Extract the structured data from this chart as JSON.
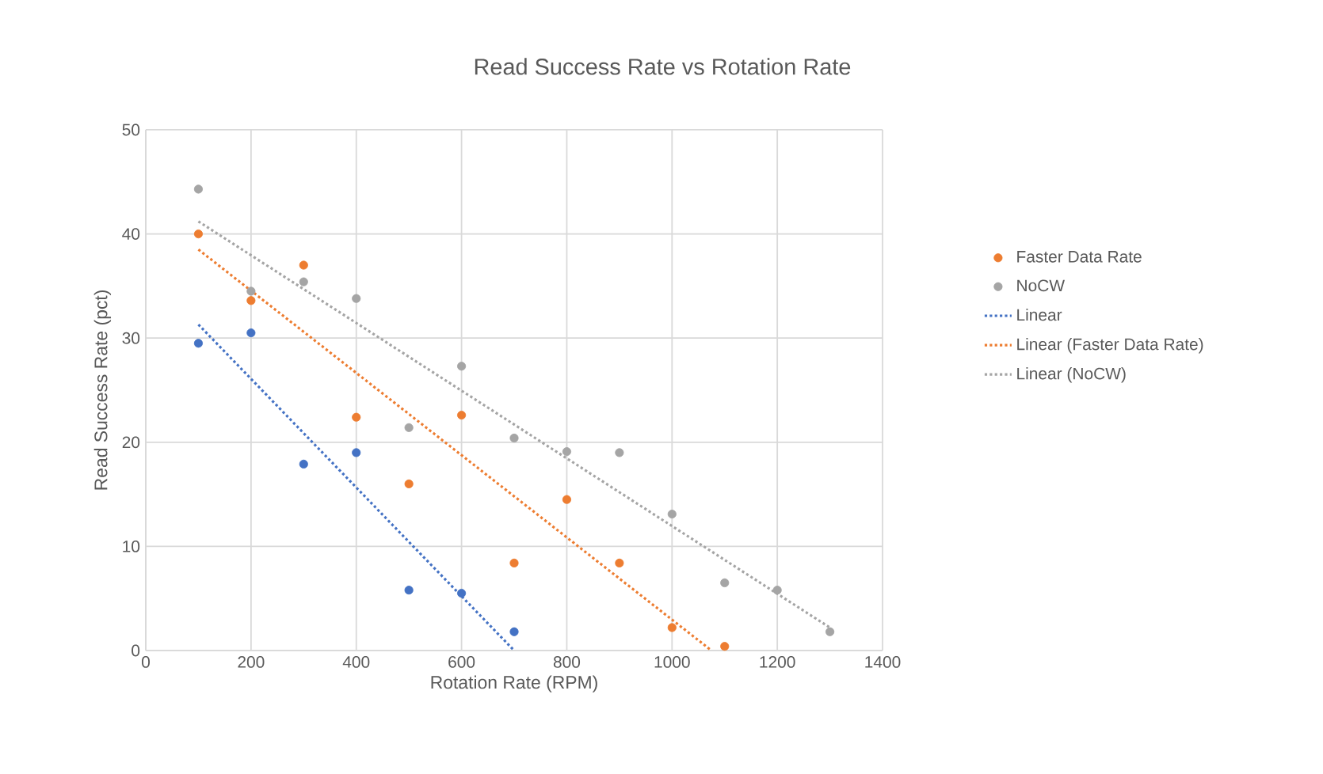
{
  "chart_data": {
    "type": "scatter",
    "title": "Read Success Rate vs Rotation Rate",
    "xlabel": "Rotation Rate (RPM)",
    "ylabel": "Read Success Rate (pct)",
    "xlim": [
      0,
      1400
    ],
    "xticks": [
      0,
      200,
      400,
      600,
      800,
      1000,
      1200,
      1400
    ],
    "ylim": [
      0,
      50
    ],
    "yticks": [
      0,
      10,
      20,
      30,
      40,
      50
    ],
    "grid": true,
    "legend": "right",
    "marker": "circle",
    "series": [
      {
        "color": "#4472c4",
        "x": [
          100,
          200,
          300,
          400,
          500,
          600,
          700
        ],
        "values": [
          29.5,
          30.5,
          17.9,
          19,
          5.8,
          5.5,
          1.8
        ]
      },
      {
        "name": "Faster Data Rate",
        "color": "#ed7d31",
        "x": [
          100,
          200,
          300,
          400,
          500,
          600,
          700,
          800,
          900,
          1000,
          1100
        ],
        "values": [
          40,
          33.6,
          37,
          22.4,
          16,
          22.6,
          8.4,
          14.5,
          8.4,
          2.2,
          0.4
        ]
      },
      {
        "name": "NoCW",
        "color": "#a5a5a5",
        "x": [
          100,
          200,
          300,
          400,
          500,
          600,
          700,
          800,
          900,
          1000,
          1100,
          1200,
          1300
        ],
        "values": [
          44.3,
          34.5,
          35.4,
          33.8,
          21.4,
          27.3,
          20.4,
          19.1,
          19,
          13.1,
          6.5,
          5.8,
          1.8
        ]
      },
      {
        "name": "Linear",
        "type": "line",
        "line_style": "dotted",
        "marker": "none",
        "color": "#4472c4",
        "x": [
          100,
          700
        ],
        "values": [
          31.3,
          0
        ]
      },
      {
        "name": "Linear (Faster Data Rate)",
        "type": "line",
        "line_style": "dotted",
        "marker": "none",
        "color": "#ed7d31",
        "x": [
          100,
          1075
        ],
        "values": [
          38.5,
          0
        ]
      },
      {
        "name": "Linear (NoCW)",
        "type": "line",
        "line_style": "dotted",
        "marker": "none",
        "color": "#a5a5a5",
        "x": [
          100,
          1300
        ],
        "values": [
          41.2,
          2.2
        ]
      }
    ]
  }
}
